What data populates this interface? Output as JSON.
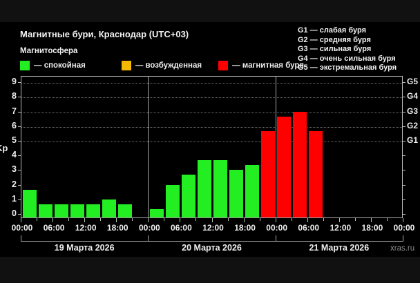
{
  "title": "Магнитные бури, Краснодар (UTC+03)",
  "subtitle": "Магнитосфера",
  "legend": [
    {
      "label": "— спокойная",
      "color": "#22ee22"
    },
    {
      "label": "— возбужденная",
      "color": "#f5b800"
    },
    {
      "label": "— магнитная буря",
      "color": "#ff0000"
    }
  ],
  "g_legend": [
    "G1 — слабая буря",
    "G2 — средняя буря",
    "G3 — сильная буря",
    "G4 — очень сильная буря",
    "G5 — экстремальная буря"
  ],
  "y_axis_label": "Kp",
  "watermark": "xras.ru",
  "chart_data": {
    "type": "bar",
    "title": "Магнитные бури, Краснодар (UTC+03)",
    "xlabel": "",
    "ylabel": "Kp",
    "ylim": [
      0,
      9
    ],
    "yticks": [
      "0",
      "1",
      "2",
      "3",
      "4",
      "5",
      "6",
      "7",
      "8",
      "9"
    ],
    "right_axis_ticks": [
      {
        "label": "G1",
        "kp": 5
      },
      {
        "label": "G2",
        "kp": 6
      },
      {
        "label": "G3",
        "kp": 7
      },
      {
        "label": "G4",
        "kp": 8
      },
      {
        "label": "G5",
        "kp": 9
      }
    ],
    "grid": "dotted horizontal at Kp 5–9",
    "x_tick_labels": [
      "00:00",
      "06:00",
      "12:00",
      "18:00",
      "00:00",
      "06:00",
      "12:00",
      "18:00",
      "00:00",
      "06:00",
      "12:00",
      "18:00",
      "00:00"
    ],
    "dates": [
      "19 Марта 2026",
      "20 Марта 2026",
      "21 Марта 2026"
    ],
    "interval_hours": 3,
    "categories": [
      "19.03 00:00",
      "19.03 03:00",
      "19.03 06:00",
      "19.03 09:00",
      "19.03 12:00",
      "19.03 15:00",
      "19.03 18:00",
      "19.03 21:00",
      "20.03 00:00",
      "20.03 03:00",
      "20.03 06:00",
      "20.03 09:00",
      "20.03 12:00",
      "20.03 15:00",
      "20.03 18:00",
      "20.03 21:00",
      "21.03 00:00",
      "21.03 03:00",
      "21.03 06:00",
      "21.03 09:00",
      "21.03 12:00",
      "21.03 15:00",
      "21.03 18:00",
      "21.03 21:00"
    ],
    "values": [
      1.67,
      0.67,
      0.67,
      0.67,
      0.67,
      1.0,
      0.67,
      null,
      0.33,
      2.0,
      2.67,
      3.67,
      3.67,
      3.0,
      3.33,
      5.67,
      6.67,
      7.0,
      5.67,
      null,
      null,
      null,
      null,
      null
    ],
    "status": [
      "calm",
      "calm",
      "calm",
      "calm",
      "calm",
      "calm",
      "calm",
      null,
      "calm",
      "calm",
      "calm",
      "calm",
      "calm",
      "calm",
      "calm",
      "storm",
      "storm",
      "storm",
      "storm",
      null,
      null,
      null,
      null,
      null
    ],
    "status_colors": {
      "calm": "#22ee22",
      "excited": "#f5b800",
      "storm": "#ff0000"
    }
  }
}
